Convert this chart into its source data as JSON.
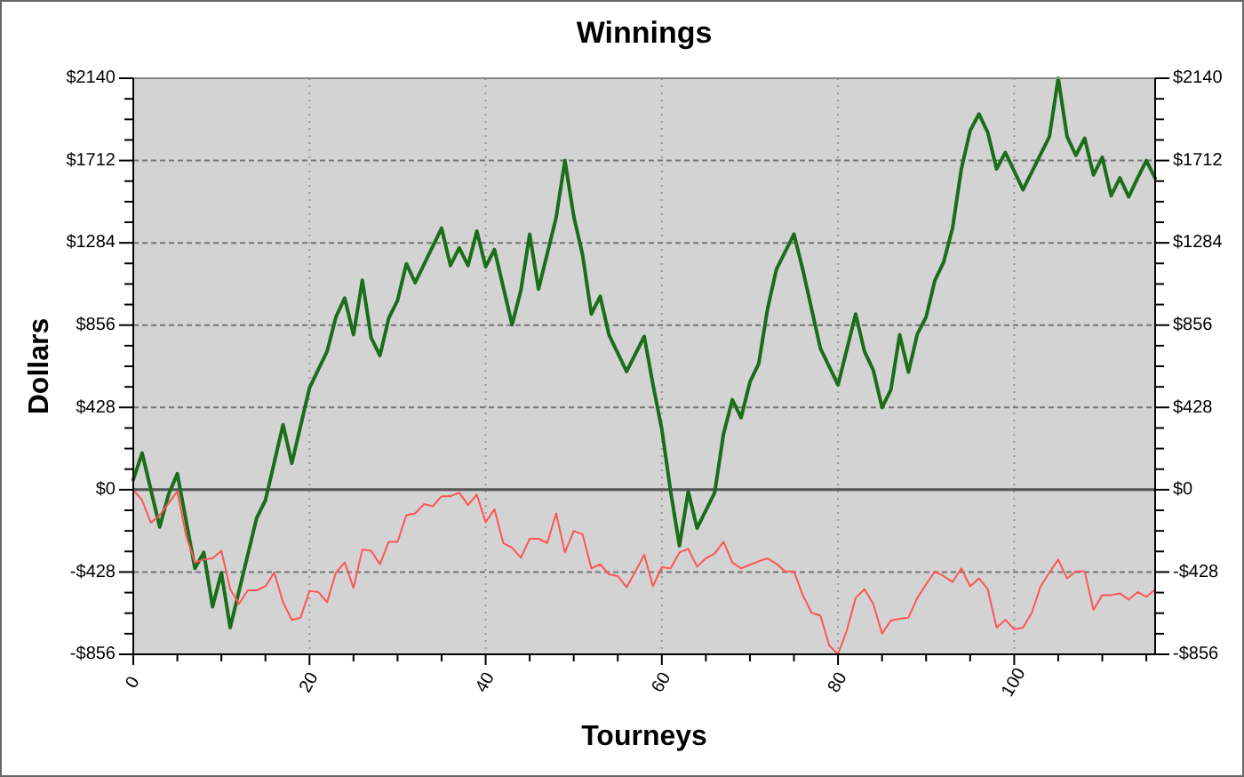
{
  "chart_data": {
    "type": "line",
    "title": "Winnings",
    "xlabel": "Tourneys",
    "ylabel": "Dollars",
    "xlim": [
      0,
      116
    ],
    "xticks": [
      0,
      {
        "value": 5,
        "label": null
      },
      {
        "value": 10,
        "label": null
      },
      {
        "value": 15,
        "label": null
      },
      20,
      {
        "value": 25,
        "label": null
      },
      {
        "value": 30,
        "label": null
      },
      {
        "value": 35,
        "label": null
      },
      40,
      {
        "value": 45,
        "label": null
      },
      {
        "value": 50,
        "label": null
      },
      {
        "value": 55,
        "label": null
      },
      60,
      {
        "value": 65,
        "label": null
      },
      {
        "value": 70,
        "label": null
      },
      {
        "value": 75,
        "label": null
      },
      80,
      {
        "value": 85,
        "label": null
      },
      {
        "value": 90,
        "label": null
      },
      {
        "value": 95,
        "label": null
      },
      100,
      {
        "value": 105,
        "label": null
      },
      {
        "value": 110,
        "label": null
      },
      {
        "value": 115,
        "label": null
      }
    ],
    "ylim": [
      -856,
      2140
    ],
    "yticks": [
      {
        "value": -856,
        "label": "-$856"
      },
      {
        "value": -749,
        "label": null
      },
      {
        "value": -642,
        "label": null
      },
      {
        "value": -535,
        "label": null
      },
      {
        "value": -428,
        "label": "-$428"
      },
      {
        "value": -321,
        "label": null
      },
      {
        "value": -214,
        "label": null
      },
      {
        "value": -107,
        "label": null
      },
      {
        "value": 0,
        "label": "$0"
      },
      {
        "value": 107,
        "label": null
      },
      {
        "value": 214,
        "label": null
      },
      {
        "value": 321,
        "label": null
      },
      {
        "value": 428,
        "label": "$428"
      },
      {
        "value": 535,
        "label": null
      },
      {
        "value": 642,
        "label": null
      },
      {
        "value": 749,
        "label": null
      },
      {
        "value": 856,
        "label": "$856"
      },
      {
        "value": 963,
        "label": null
      },
      {
        "value": 1070,
        "label": null
      },
      {
        "value": 1177,
        "label": null
      },
      {
        "value": 1284,
        "label": "$1284"
      },
      {
        "value": 1391,
        "label": null
      },
      {
        "value": 1498,
        "label": null
      },
      {
        "value": 1605,
        "label": null
      },
      {
        "value": 1712,
        "label": "$1712"
      },
      {
        "value": 1819,
        "label": null
      },
      {
        "value": 1926,
        "label": null
      },
      {
        "value": 2033,
        "label": null
      },
      {
        "value": 2140,
        "label": "$2140"
      }
    ],
    "y2lim": [
      -856,
      2140
    ],
    "y2ticks": [
      {
        "value": -856,
        "label": "-$856"
      },
      {
        "value": -749,
        "label": null
      },
      {
        "value": -642,
        "label": null
      },
      {
        "value": -535,
        "label": null
      },
      {
        "value": -428,
        "label": "-$428"
      },
      {
        "value": -321,
        "label": null
      },
      {
        "value": -214,
        "label": null
      },
      {
        "value": -107,
        "label": null
      },
      {
        "value": 0,
        "label": "$0"
      },
      {
        "value": 107,
        "label": null
      },
      {
        "value": 214,
        "label": null
      },
      {
        "value": 321,
        "label": null
      },
      {
        "value": 428,
        "label": "$428"
      },
      {
        "value": 535,
        "label": null
      },
      {
        "value": 642,
        "label": null
      },
      {
        "value": 749,
        "label": null
      },
      {
        "value": 856,
        "label": "$856"
      },
      {
        "value": 963,
        "label": null
      },
      {
        "value": 1070,
        "label": null
      },
      {
        "value": 1177,
        "label": null
      },
      {
        "value": 1284,
        "label": "$1284"
      },
      {
        "value": 1391,
        "label": null
      },
      {
        "value": 1498,
        "label": null
      },
      {
        "value": 1605,
        "label": null
      },
      {
        "value": 1712,
        "label": "$1712"
      },
      {
        "value": 1819,
        "label": null
      },
      {
        "value": 1926,
        "label": null
      },
      {
        "value": 2033,
        "label": null
      },
      {
        "value": 2140,
        "label": "$2140"
      }
    ],
    "grid": true,
    "ref_lines": [
      {
        "axis": "y",
        "value": 0,
        "color": "#555555"
      }
    ],
    "series": [
      {
        "color": "#1a6e1a",
        "x": [
          0,
          1,
          3,
          4,
          5,
          7,
          8,
          9,
          10,
          11,
          14,
          15,
          17,
          18,
          20,
          22,
          23,
          24,
          25,
          26,
          27,
          28,
          29,
          30,
          31,
          32,
          35,
          36,
          37,
          38,
          39,
          40,
          41,
          43,
          44,
          45,
          46,
          48,
          49,
          50,
          51,
          52,
          53,
          54,
          56,
          58,
          59,
          60,
          61,
          62,
          63,
          64,
          66,
          67,
          68,
          69,
          70,
          71,
          72,
          73,
          75,
          76,
          78,
          80,
          82,
          83,
          84,
          85,
          86,
          87,
          88,
          89,
          90,
          91,
          92,
          93,
          94,
          95,
          96,
          97,
          98,
          99,
          101,
          104,
          105,
          106,
          107,
          108,
          109,
          110,
          111,
          112,
          113,
          114,
          115,
          116
        ],
        "values": [
          52,
          191,
          -194,
          -25,
          83,
          -409,
          -326,
          -609,
          -431,
          -717,
          -148,
          -55,
          338,
          138,
          529,
          720,
          898,
          997,
          806,
          1089,
          791,
          698,
          892,
          985,
          1175,
          1077,
          1360,
          1166,
          1258,
          1166,
          1345,
          1160,
          1249,
          858,
          1037,
          1329,
          1043,
          1415,
          1712,
          1422,
          1222,
          914,
          1006,
          806,
          615,
          797,
          545,
          314,
          -9,
          -292,
          -9,
          -200,
          -15,
          289,
          468,
          375,
          560,
          655,
          940,
          1145,
          1329,
          1145,
          735,
          545,
          914,
          720,
          622,
          428,
          520,
          806,
          612,
          809,
          898,
          1089,
          1185,
          1360,
          1668,
          1868,
          1954,
          1858,
          1668,
          1754,
          1560,
          1837,
          2140,
          1837,
          1739,
          1828,
          1637,
          1729,
          1529,
          1622,
          1523,
          1620,
          1712,
          1620
        ]
      },
      {
        "color": "#ff5555",
        "x": [
          0,
          1,
          2,
          3,
          5,
          6,
          7,
          8,
          9,
          10,
          11,
          12,
          13,
          14,
          15,
          16,
          17,
          18,
          19,
          20,
          21,
          22,
          23,
          24,
          25,
          26,
          27,
          28,
          29,
          30,
          31,
          32,
          33,
          34,
          35,
          36,
          37,
          38,
          39,
          40,
          41,
          42,
          43,
          44,
          45,
          46,
          47,
          48,
          49,
          50,
          51,
          52,
          53,
          54,
          55,
          56,
          57,
          58,
          59,
          60,
          61,
          62,
          63,
          64,
          65,
          66,
          67,
          68,
          69,
          70,
          71,
          72,
          73,
          74,
          75,
          76,
          77,
          78,
          79,
          80,
          81,
          82,
          83,
          84,
          85,
          86,
          87,
          88,
          89,
          90,
          91,
          92,
          93,
          94,
          95,
          96,
          97,
          98,
          99,
          100,
          101,
          102,
          103,
          104,
          105,
          106,
          107,
          108,
          109,
          110,
          111,
          112,
          113,
          114,
          115,
          116
        ],
        "values": [
          0,
          -55,
          -172,
          -132,
          -9,
          -240,
          -378,
          -363,
          -357,
          -317,
          -517,
          -594,
          -523,
          -523,
          -502,
          -431,
          -585,
          -677,
          -665,
          -526,
          -532,
          -585,
          -431,
          -378,
          -511,
          -311,
          -317,
          -388,
          -271,
          -271,
          -132,
          -123,
          -75,
          -86,
          -34,
          -34,
          -15,
          -80,
          -25,
          -169,
          -102,
          -277,
          -302,
          -354,
          -255,
          -255,
          -277,
          -123,
          -326,
          -215,
          -231,
          -409,
          -388,
          -440,
          -449,
          -508,
          -425,
          -338,
          -502,
          -403,
          -409,
          -326,
          -308,
          -400,
          -357,
          -332,
          -271,
          -378,
          -409,
          -390,
          -372,
          -357,
          -385,
          -425,
          -425,
          -548,
          -640,
          -655,
          -809,
          -856,
          -732,
          -563,
          -517,
          -594,
          -748,
          -680,
          -671,
          -665,
          -563,
          -492,
          -425,
          -449,
          -480,
          -409,
          -502,
          -461,
          -517,
          -717,
          -677,
          -726,
          -717,
          -640,
          -502,
          -431,
          -363,
          -461,
          -425,
          -425,
          -625,
          -548,
          -548,
          -539,
          -572,
          -532,
          -557,
          -520
        ]
      }
    ]
  }
}
